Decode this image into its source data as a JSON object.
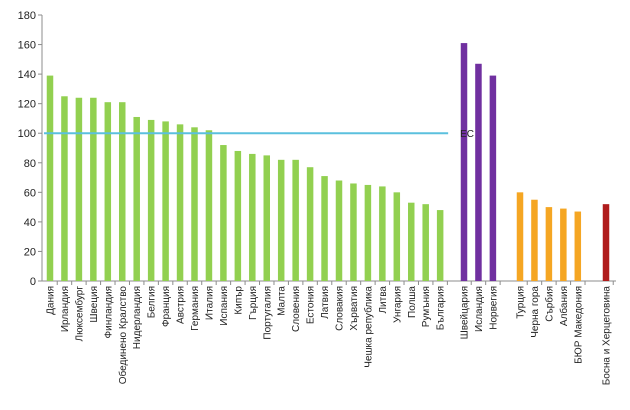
{
  "chart_data": {
    "type": "bar",
    "ylim": [
      0,
      180
    ],
    "yticks": [
      0,
      20,
      40,
      60,
      80,
      100,
      120,
      140,
      160,
      180
    ],
    "grid": false,
    "legend": "none",
    "reference_line": {
      "label": "ЕС",
      "value": 100,
      "color": "#5bc0de"
    },
    "groups": [
      {
        "color": "#92d050",
        "categories": [
          "Дания",
          "Ирландия",
          "Люксембург",
          "Швеция",
          "Финландия",
          "Обединено Кралство",
          "Нидерландия",
          "Белгия",
          "Франция",
          "Австрия",
          "Германия",
          "Италия",
          "Испания",
          "Кипър",
          "Гърция",
          "Португалия",
          "Малта",
          "Словения",
          "Естония",
          "Латвия",
          "Словакия",
          "Хърватия",
          "Чешка република",
          "Литва",
          "Унгария",
          "Полша",
          "Румъния",
          "България"
        ],
        "values": [
          139,
          125,
          124,
          124,
          121,
          121,
          111,
          109,
          108,
          106,
          104,
          102,
          92,
          88,
          86,
          85,
          82,
          82,
          77,
          71,
          68,
          66,
          65,
          64,
          60,
          53,
          52,
          48
        ]
      },
      {
        "color": "#7030a0",
        "categories": [
          "Швейцария",
          "Исландия",
          "Норвегия"
        ],
        "values": [
          161,
          147,
          139
        ]
      },
      {
        "color": "#f5a623",
        "categories": [
          "Турция",
          "Черна гора",
          "Сърбия",
          "Албания",
          "БЮР Македония"
        ],
        "values": [
          60,
          55,
          50,
          49,
          47
        ]
      },
      {
        "color": "#b01c1c",
        "categories": [
          "Босна и Херцеговина"
        ],
        "values": [
          52
        ]
      }
    ]
  }
}
